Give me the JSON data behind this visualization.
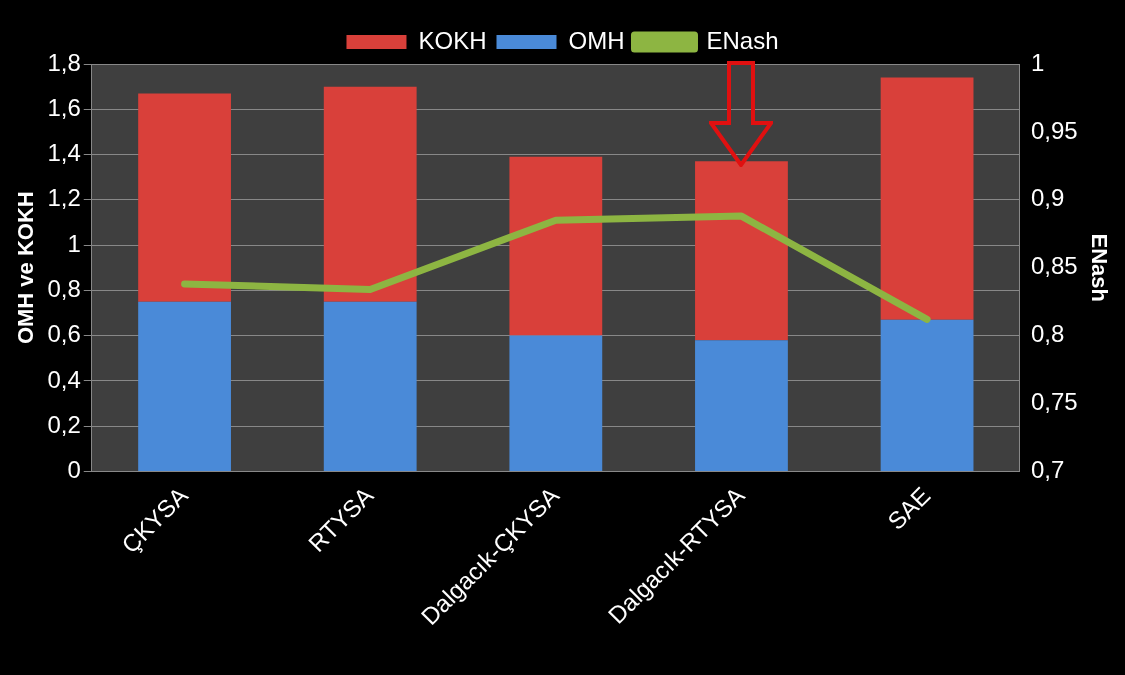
{
  "chart_data": {
    "type": "bar",
    "stacked": true,
    "categories": [
      "ÇKYSA",
      "RTYSA",
      "Dalgacık-ÇKYSA",
      "Dalgacık-RTYSA",
      "SAE"
    ],
    "series": [
      {
        "name": "OMH",
        "color": "#4a8ad8",
        "values": [
          0.75,
          0.75,
          0.6,
          0.58,
          0.67
        ]
      },
      {
        "name": "KOKH",
        "color": "#d9403a",
        "values": [
          0.92,
          0.95,
          0.79,
          0.79,
          1.07
        ]
      },
      {
        "name": "ENash",
        "type": "line",
        "axis": "y2",
        "color": "#8db542",
        "values": [
          0.838,
          0.834,
          0.885,
          0.888,
          0.812
        ]
      }
    ],
    "ylabel": "OMH ve KOKH",
    "y2label": "ENash",
    "ylim": [
      0,
      1.8
    ],
    "yticks": [
      0,
      {
        "value": 0.2,
        "label": "0,2"
      },
      {
        "value": 0.4,
        "label": "0,4"
      },
      {
        "value": 0.6,
        "label": "0,6"
      },
      {
        "value": 0.8,
        "label": "0,8"
      },
      1,
      {
        "value": 1.2,
        "label": "1,2"
      },
      {
        "value": 1.4,
        "label": "1,4"
      },
      {
        "value": 1.6,
        "label": "1,6"
      },
      {
        "value": 1.8,
        "label": "1,8"
      }
    ],
    "y2lim": [
      0.7,
      1
    ],
    "y2ticks": [
      {
        "value": 0.7,
        "label": "0,7"
      },
      {
        "value": 0.75,
        "label": "0,75"
      },
      {
        "value": 0.8,
        "label": "0,8"
      },
      {
        "value": 0.85,
        "label": "0,85"
      },
      {
        "value": 0.9,
        "label": "0,9"
      },
      {
        "value": 0.95,
        "label": "0,95"
      },
      1
    ],
    "grid": "y",
    "legend": "top",
    "marker": "none",
    "line_style": "solid"
  }
}
